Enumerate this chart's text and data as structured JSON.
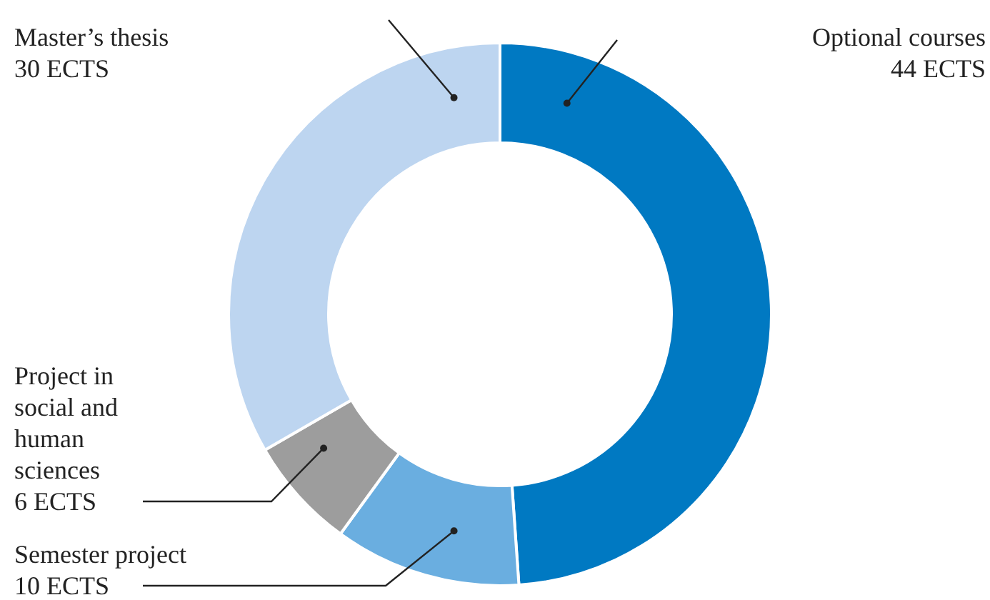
{
  "chart_data": {
    "type": "donut",
    "categories": [
      "Optional courses",
      "Semester project",
      "Project in social and human sciences",
      "Master’s thesis"
    ],
    "values": [
      44,
      10,
      6,
      30
    ],
    "colors": [
      "#0079c2",
      "#6aaee0",
      "#9d9d9d",
      "#bdd5f0"
    ],
    "value_labels": [
      "44 ECTS",
      "10 ECTS",
      "6 ECTS",
      "30 ECTS"
    ]
  }
}
